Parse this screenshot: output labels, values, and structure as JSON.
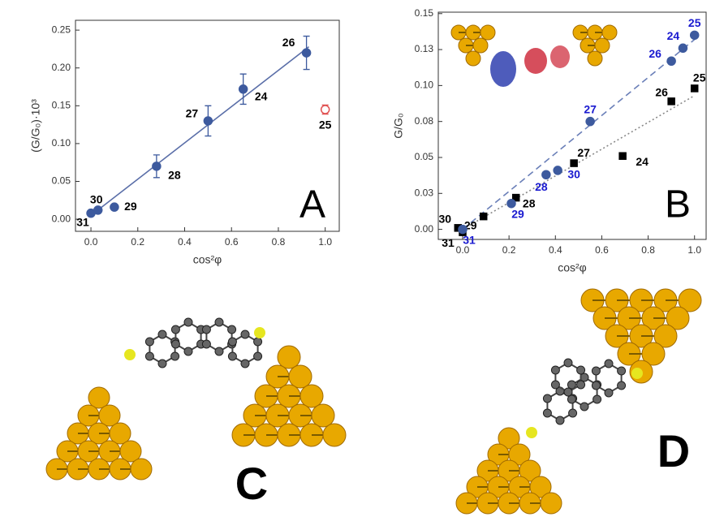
{
  "chart_data": [
    {
      "type": "scatter",
      "annotation": "A",
      "xlabel": "cos²φ",
      "ylabel": "(G/G₀)·10³",
      "xlim": [
        -0.066,
        1.06
      ],
      "ylim": [
        -0.016,
        0.263
      ],
      "xticks": [
        {
          "value": 0,
          "label": "0.0"
        },
        0.2,
        0.4,
        0.6,
        0.8,
        {
          "value": 1,
          "label": "1.0"
        }
      ],
      "yticks": [
        {
          "value": 0,
          "label": "0.00"
        },
        0.05,
        {
          "value": 0.1,
          "label": "0.10"
        },
        0.15,
        {
          "value": 0.2,
          "label": "0.20"
        },
        0.25
      ],
      "series": [
        {
          "marker": "circle",
          "filled": true,
          "color": "#3d5a9e",
          "label_color": "#000000",
          "x": [
            0.0,
            0.03,
            0.1,
            0.28,
            0.5,
            0.65,
            0.92
          ],
          "values": [
            0.008,
            0.012,
            0.016,
            0.07,
            0.13,
            0.172,
            0.22
          ],
          "errors": [
            null,
            null,
            null,
            0.015,
            0.02,
            0.02,
            0.022
          ],
          "labels": [
            "31",
            "30",
            "29",
            "28",
            "27",
            "24",
            "26"
          ]
        },
        {
          "marker": "circle",
          "filled": false,
          "color": "#e05050",
          "label_color": "#000000",
          "x": [
            1.0
          ],
          "values": [
            0.145
          ],
          "errors": [
            0.006
          ],
          "labels": [
            "25"
          ]
        }
      ],
      "fits": [
        {
          "color": "#5a6ea8",
          "dash": "none",
          "x": [
            0.0,
            0.93
          ],
          "values": [
            0.005,
            0.228
          ]
        }
      ]
    },
    {
      "type": "scatter",
      "annotation": "B",
      "xlabel": "cos²φ",
      "ylabel": "G/G₀",
      "xlim": [
        -0.105,
        1.05
      ],
      "ylim": [
        -0.007,
        0.151
      ],
      "xticks": [
        {
          "value": 0,
          "label": "0.0"
        },
        0.2,
        0.4,
        0.6,
        0.8,
        {
          "value": 1,
          "label": "1.0"
        }
      ],
      "yticks": [
        {
          "value": 0,
          "label": "0.00"
        },
        {
          "value": 0.025,
          "label": "0.03"
        },
        0.05,
        {
          "value": 0.075,
          "label": "0.08"
        },
        {
          "value": 0.1,
          "label": "0.10"
        },
        {
          "value": 0.125,
          "label": "0.13"
        },
        0.15
      ],
      "series": [
        {
          "marker": "square",
          "filled": true,
          "color": "#000000",
          "label_color": "#000000",
          "x": [
            -0.02,
            0.0,
            0.09,
            0.23,
            0.48,
            0.69,
            0.9,
            1.0
          ],
          "values": [
            0.001,
            -0.002,
            0.009,
            0.022,
            0.046,
            0.051,
            0.089,
            0.098
          ],
          "labels": [
            "30",
            "31",
            "29",
            "28",
            "27",
            "24",
            "26",
            "25"
          ]
        },
        {
          "marker": "circle",
          "filled": true,
          "color": "#3d5a9e",
          "label_color": "#1a1ad0",
          "x": [
            0.0,
            0.21,
            0.36,
            0.41,
            0.55,
            0.9,
            0.95,
            1.0
          ],
          "values": [
            0.0,
            0.018,
            0.038,
            0.041,
            0.075,
            0.117,
            0.126,
            0.135
          ],
          "labels": [
            "31",
            "29",
            "28",
            "30",
            "27",
            "26",
            "24",
            "25"
          ]
        }
      ],
      "fits": [
        {
          "color": "#6a7fb8",
          "dash": "8 5",
          "x": [
            0.0,
            1.0
          ],
          "values": [
            0.0,
            0.132
          ]
        },
        {
          "color": "#888888",
          "dash": "2 3",
          "x": [
            0.0,
            1.0
          ],
          "values": [
            0.0,
            0.093
          ]
        }
      ]
    }
  ],
  "panels": [
    {
      "label": "C"
    },
    {
      "label": "D"
    }
  ]
}
